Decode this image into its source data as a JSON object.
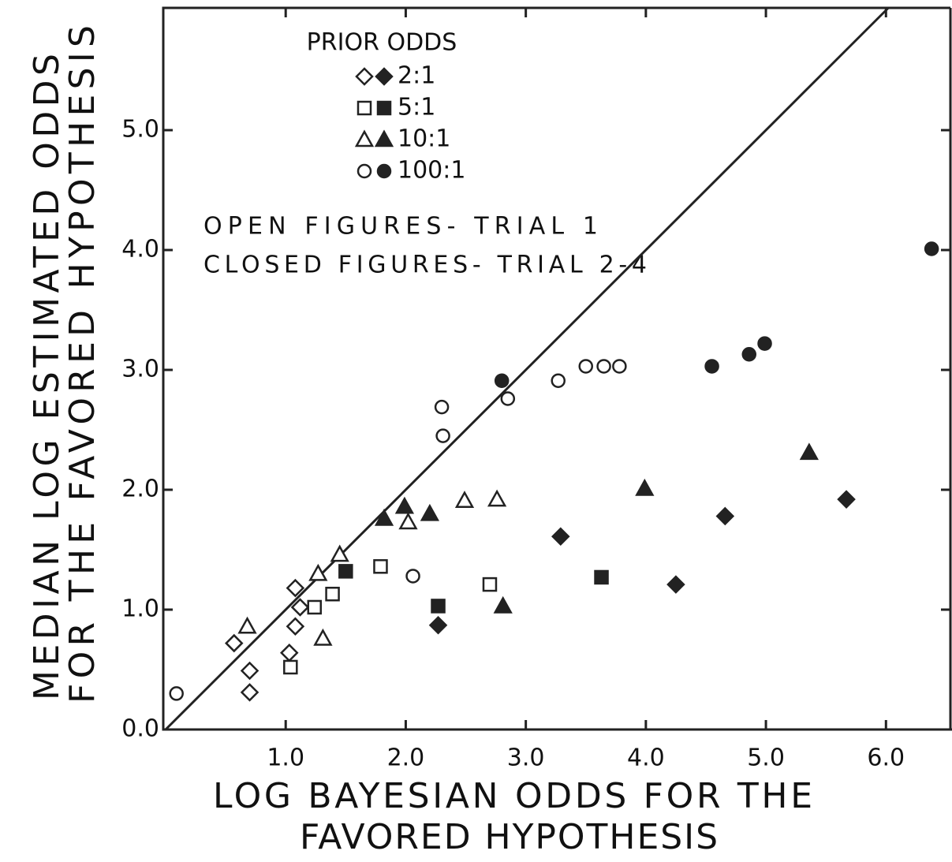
{
  "chart_data": {
    "type": "scatter",
    "xlabel": [
      "LOG BAYESIAN ODDS FOR THE",
      "FAVORED HYPOTHESIS"
    ],
    "ylabel": [
      "MEDIAN LOG ESTIMATED ODDS",
      "FOR THE FAVORED HYPOTHESIS"
    ],
    "legend_title": "PRIOR ODDS",
    "legend": [
      {
        "label": "2:1",
        "marker": "diamond"
      },
      {
        "label": "5:1",
        "marker": "square"
      },
      {
        "label": "10:1",
        "marker": "triangle"
      },
      {
        "label": "100:1",
        "marker": "circle"
      }
    ],
    "notes": [
      "OPEN FIGURES- TRIAL 1",
      "CLOSED FIGURES- TRIAL 2-4"
    ],
    "color": "#222222",
    "series": [
      {
        "marker": "diamond",
        "filled": false,
        "x": [
          0.57,
          0.7,
          0.7,
          1.03,
          1.08,
          1.08,
          1.12
        ],
        "values": [
          0.72,
          0.49,
          0.31,
          0.64,
          0.86,
          1.18,
          1.02
        ]
      },
      {
        "marker": "diamond",
        "filled": true,
        "x": [
          2.27,
          3.29,
          4.25,
          4.66,
          5.67
        ],
        "values": [
          0.87,
          1.61,
          1.21,
          1.78,
          1.92
        ]
      },
      {
        "marker": "square",
        "filled": false,
        "x": [
          1.04,
          1.24,
          1.39,
          1.79,
          2.7
        ],
        "values": [
          0.52,
          1.02,
          1.13,
          1.36,
          1.21
        ]
      },
      {
        "marker": "square",
        "filled": true,
        "x": [
          1.5,
          2.27,
          3.63
        ],
        "values": [
          1.32,
          1.03,
          1.27
        ]
      },
      {
        "marker": "triangle",
        "filled": false,
        "x": [
          0.68,
          1.31,
          1.27,
          1.45,
          2.02,
          2.49,
          2.76
        ],
        "values": [
          0.86,
          0.76,
          1.3,
          1.46,
          1.73,
          1.91,
          1.92
        ]
      },
      {
        "marker": "triangle",
        "filled": true,
        "x": [
          1.82,
          1.99,
          2.2,
          2.81,
          3.99,
          5.36
        ],
        "values": [
          1.76,
          1.86,
          1.8,
          1.03,
          2.01,
          2.31
        ]
      },
      {
        "marker": "circle",
        "filled": false,
        "x": [
          0.09,
          2.06,
          2.3,
          2.31,
          2.85,
          3.27,
          3.5,
          3.65,
          3.78
        ],
        "values": [
          0.3,
          1.28,
          2.69,
          2.45,
          2.76,
          2.91,
          3.03,
          3.03,
          3.03
        ]
      },
      {
        "marker": "circle",
        "filled": true,
        "x": [
          2.8,
          4.55,
          4.86,
          4.99,
          6.38
        ],
        "values": [
          2.91,
          3.03,
          3.13,
          3.22,
          4.01
        ]
      }
    ],
    "xlim": [
      0,
      6.55
    ],
    "ylim": [
      0,
      6.02
    ],
    "xticks": [
      {
        "value": 1,
        "label": "1.0"
      },
      {
        "value": 2,
        "label": "2.0"
      },
      {
        "value": 3,
        "label": "3.0"
      },
      {
        "value": 4,
        "label": "4.0"
      },
      {
        "value": 5,
        "label": "5.0"
      },
      {
        "value": 6,
        "label": "6.0"
      }
    ],
    "yticks": [
      {
        "value": 0,
        "label": "0.0"
      },
      {
        "value": 1,
        "label": "1.0"
      },
      {
        "value": 2,
        "label": "2.0"
      },
      {
        "value": 3,
        "label": "3.0"
      },
      {
        "value": 4,
        "label": "4.0"
      },
      {
        "value": 5,
        "label": "5.0"
      }
    ],
    "grid": false
  }
}
